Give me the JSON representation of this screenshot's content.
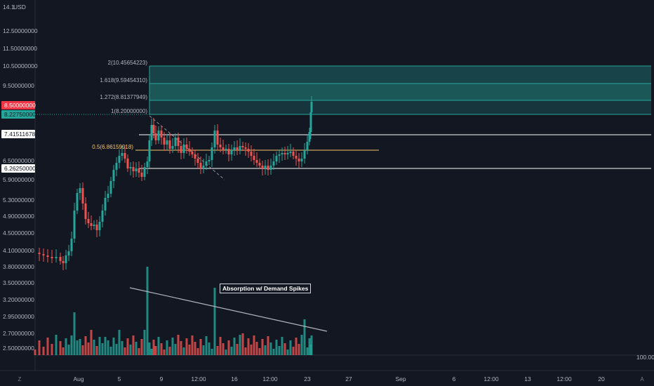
{
  "price_axis": {
    "currency": "USD",
    "top_value": "14.1",
    "ticks": [
      "12.50000000",
      "11.50000000",
      "10.50000000",
      "9.50000000",
      "6.50000000",
      "5.90000000",
      "5.30000000",
      "4.90000000",
      "4.50000000",
      "4.10000000",
      "3.80000000",
      "3.50000000",
      "3.20000000",
      "2.95000000",
      "2.70000000",
      "2.50000000"
    ],
    "log_scale": true
  },
  "price_tags": [
    {
      "value": "8.50000000",
      "bg": "#f23645",
      "fg": "#ffffff"
    },
    {
      "value": "8.22750000",
      "bg": "#26a69a",
      "fg": "#131722"
    },
    {
      "value": "7.41511678",
      "bg": "#ffffff",
      "fg": "#131722"
    },
    {
      "value": "6.26250000",
      "bg": "#ffffff",
      "fg": "#131722"
    }
  ],
  "fib_levels": [
    {
      "ratio": "2",
      "value": "10.45654223",
      "label": "2(10.45654223)"
    },
    {
      "ratio": "1.618",
      "value": "9.59454310",
      "label": "1.618(9.59454310)"
    },
    {
      "ratio": "1.272",
      "value": "8.81377949",
      "label": "1.272(8.81377949)"
    },
    {
      "ratio": "1",
      "value": "8.20000000",
      "label": "1(8.20000000)"
    }
  ],
  "retracement": {
    "label": "0.5(6.86159918)"
  },
  "annotation": "Absorption w/ Demand Spikes",
  "time_axis": [
    "Aug",
    "5",
    "9",
    "12:00",
    "16",
    "12:00",
    "23",
    "27",
    "Sep",
    "6",
    "12:00",
    "13",
    "12:00",
    "20"
  ],
  "volume_axis_label": "100.00",
  "bottom_left_btn": "Z",
  "bottom_right_btn": "A",
  "colors": {
    "up": "#26a69a",
    "down": "#ef5350",
    "background": "#131722",
    "fib_fill": "#26a69a"
  },
  "chart_data": {
    "type": "candlestick",
    "y_scale": "log",
    "overlays": [
      "fib-extension",
      "horizontal-lines",
      "volume-bars",
      "trendlines"
    ],
    "key_levels": [
      8.5,
      8.2275,
      7.41511678,
      6.8615,
      6.2625
    ],
    "fib_extension_levels": [
      {
        "ratio": 2,
        "price": 10.45654223
      },
      {
        "ratio": 1.618,
        "price": 9.5945431
      },
      {
        "ratio": 1.272,
        "price": 8.81377949
      },
      {
        "ratio": 1,
        "price": 8.2
      }
    ]
  }
}
